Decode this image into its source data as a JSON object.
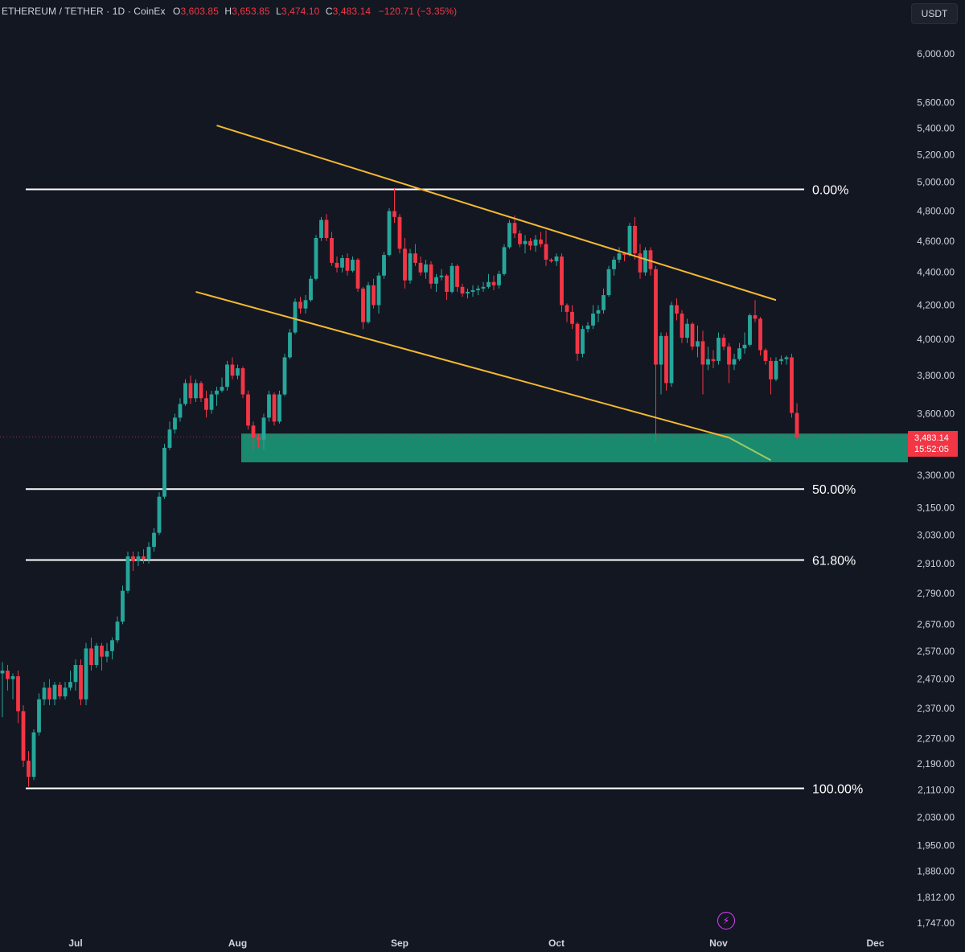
{
  "header": {
    "symbol": "ETHEREUM / TETHER · 1D · CoinEx",
    "open_label": "O",
    "open": "3,603.85",
    "high_label": "H",
    "high": "3,653.85",
    "low_label": "L",
    "low": "3,474.10",
    "close_label": "C",
    "close": "3,483.14",
    "change": "−120.71 (−3.35%)"
  },
  "currency": "USDT",
  "last_price": {
    "price": "3,483.14",
    "countdown": "15:52:05"
  },
  "bolt_icon": "lightning-bolt-icon",
  "colors": {
    "background": "#131722",
    "up": "#26a69a",
    "down": "#f23645",
    "trendline": "#f5b931",
    "zone": "#1a8a6e",
    "fib": "#ffffff",
    "text": "#d1d4dc"
  },
  "chart_data": {
    "type": "candlestick",
    "scale": "log",
    "ylim": [
      1720,
      6300
    ],
    "y_ticks": [
      {
        "value": 6000,
        "label": "6,000.00"
      },
      {
        "value": 5600,
        "label": "5,600.00"
      },
      {
        "value": 5400,
        "label": "5,400.00"
      },
      {
        "value": 5200,
        "label": "5,200.00"
      },
      {
        "value": 5000,
        "label": "5,000.00"
      },
      {
        "value": 4800,
        "label": "4,800.00"
      },
      {
        "value": 4600,
        "label": "4,600.00"
      },
      {
        "value": 4400,
        "label": "4,400.00"
      },
      {
        "value": 4200,
        "label": "4,200.00"
      },
      {
        "value": 4000,
        "label": "4,000.00"
      },
      {
        "value": 3800,
        "label": "3,800.00"
      },
      {
        "value": 3600,
        "label": "3,600.00"
      },
      {
        "value": 3300,
        "label": "3,300.00"
      },
      {
        "value": 3150,
        "label": "3,150.00"
      },
      {
        "value": 3030,
        "label": "3,030.00"
      },
      {
        "value": 2910,
        "label": "2,910.00"
      },
      {
        "value": 2790,
        "label": "2,790.00"
      },
      {
        "value": 2670,
        "label": "2,670.00"
      },
      {
        "value": 2570,
        "label": "2,570.00"
      },
      {
        "value": 2470,
        "label": "2,470.00"
      },
      {
        "value": 2370,
        "label": "2,370.00"
      },
      {
        "value": 2270,
        "label": "2,270.00"
      },
      {
        "value": 2190,
        "label": "2,190.00"
      },
      {
        "value": 2110,
        "label": "2,110.00"
      },
      {
        "value": 2030,
        "label": "2,030.00"
      },
      {
        "value": 1950,
        "label": "1,950.00"
      },
      {
        "value": 1880,
        "label": "1,880.00"
      },
      {
        "value": 1812,
        "label": "1,812.00"
      },
      {
        "value": 1747,
        "label": "1,747.00"
      }
    ],
    "x_ticks": [
      {
        "day": 14,
        "label": "Jul"
      },
      {
        "day": 45,
        "label": "Aug"
      },
      {
        "day": 76,
        "label": "Sep"
      },
      {
        "day": 106,
        "label": "Oct"
      },
      {
        "day": 137,
        "label": "Nov"
      },
      {
        "day": 167,
        "label": "Dec"
      }
    ],
    "candles": [
      [
        2490,
        2530,
        2340,
        2500
      ],
      [
        2500,
        2520,
        2430,
        2470
      ],
      [
        2470,
        2490,
        2400,
        2480
      ],
      [
        2480,
        2500,
        2320,
        2360
      ],
      [
        2360,
        2380,
        2180,
        2200
      ],
      [
        2200,
        2230,
        2120,
        2150
      ],
      [
        2150,
        2300,
        2140,
        2290
      ],
      [
        2290,
        2420,
        2280,
        2400
      ],
      [
        2400,
        2460,
        2380,
        2440
      ],
      [
        2440,
        2470,
        2380,
        2400
      ],
      [
        2400,
        2460,
        2380,
        2450
      ],
      [
        2450,
        2460,
        2400,
        2410
      ],
      [
        2410,
        2460,
        2400,
        2440
      ],
      [
        2440,
        2500,
        2430,
        2460
      ],
      [
        2460,
        2540,
        2430,
        2520
      ],
      [
        2520,
        2540,
        2380,
        2400
      ],
      [
        2400,
        2600,
        2380,
        2580
      ],
      [
        2580,
        2620,
        2500,
        2520
      ],
      [
        2520,
        2600,
        2510,
        2590
      ],
      [
        2590,
        2600,
        2500,
        2550
      ],
      [
        2550,
        2600,
        2530,
        2570
      ],
      [
        2570,
        2620,
        2540,
        2610
      ],
      [
        2610,
        2700,
        2600,
        2680
      ],
      [
        2680,
        2820,
        2670,
        2800
      ],
      [
        2800,
        2960,
        2790,
        2940
      ],
      [
        2940,
        2960,
        2880,
        2920
      ],
      [
        2920,
        2960,
        2900,
        2940
      ],
      [
        2940,
        2970,
        2910,
        2930
      ],
      [
        2930,
        3000,
        2910,
        2980
      ],
      [
        2980,
        3060,
        2960,
        3040
      ],
      [
        3040,
        3220,
        3030,
        3200
      ],
      [
        3200,
        3450,
        3190,
        3430
      ],
      [
        3430,
        3560,
        3420,
        3520
      ],
      [
        3520,
        3600,
        3500,
        3580
      ],
      [
        3580,
        3680,
        3560,
        3650
      ],
      [
        3650,
        3780,
        3640,
        3760
      ],
      [
        3760,
        3800,
        3650,
        3680
      ],
      [
        3680,
        3780,
        3660,
        3760
      ],
      [
        3760,
        3770,
        3660,
        3680
      ],
      [
        3680,
        3720,
        3580,
        3620
      ],
      [
        3620,
        3720,
        3600,
        3700
      ],
      [
        3700,
        3740,
        3640,
        3720
      ],
      [
        3720,
        3790,
        3710,
        3740
      ],
      [
        3740,
        3880,
        3720,
        3860
      ],
      [
        3860,
        3900,
        3780,
        3800
      ],
      [
        3800,
        3860,
        3780,
        3840
      ],
      [
        3840,
        3850,
        3680,
        3700
      ],
      [
        3700,
        3720,
        3520,
        3540
      ],
      [
        3540,
        3560,
        3420,
        3480
      ],
      [
        3480,
        3500,
        3430,
        3470
      ],
      [
        3470,
        3600,
        3420,
        3580
      ],
      [
        3580,
        3720,
        3560,
        3700
      ],
      [
        3700,
        3710,
        3540,
        3560
      ],
      [
        3560,
        3720,
        3550,
        3700
      ],
      [
        3700,
        3920,
        3690,
        3900
      ],
      [
        3900,
        4060,
        3890,
        4040
      ],
      [
        4040,
        4240,
        4030,
        4220
      ],
      [
        4220,
        4250,
        4150,
        4180
      ],
      [
        4180,
        4260,
        4150,
        4230
      ],
      [
        4230,
        4380,
        4220,
        4360
      ],
      [
        4360,
        4640,
        4350,
        4620
      ],
      [
        4620,
        4760,
        4600,
        4740
      ],
      [
        4740,
        4780,
        4600,
        4620
      ],
      [
        4620,
        4660,
        4440,
        4460
      ],
      [
        4460,
        4500,
        4400,
        4430
      ],
      [
        4430,
        4510,
        4400,
        4490
      ],
      [
        4490,
        4520,
        4380,
        4410
      ],
      [
        4410,
        4500,
        4400,
        4480
      ],
      [
        4480,
        4490,
        4280,
        4300
      ],
      [
        4300,
        4310,
        4060,
        4100
      ],
      [
        4100,
        4340,
        4090,
        4320
      ],
      [
        4320,
        4360,
        4180,
        4200
      ],
      [
        4200,
        4400,
        4150,
        4380
      ],
      [
        4380,
        4530,
        4360,
        4510
      ],
      [
        4510,
        4820,
        4500,
        4800
      ],
      [
        4800,
        4960,
        4720,
        4760
      ],
      [
        4760,
        4780,
        4520,
        4550
      ],
      [
        4550,
        4620,
        4300,
        4350
      ],
      [
        4350,
        4550,
        4330,
        4520
      ],
      [
        4520,
        4580,
        4440,
        4460
      ],
      [
        4460,
        4500,
        4380,
        4400
      ],
      [
        4400,
        4480,
        4360,
        4450
      ],
      [
        4450,
        4470,
        4300,
        4330
      ],
      [
        4330,
        4390,
        4280,
        4370
      ],
      [
        4370,
        4420,
        4350,
        4380
      ],
      [
        4380,
        4390,
        4230,
        4280
      ],
      [
        4280,
        4460,
        4270,
        4440
      ],
      [
        4440,
        4450,
        4280,
        4310
      ],
      [
        4310,
        4330,
        4250,
        4270
      ],
      [
        4270,
        4300,
        4240,
        4280
      ],
      [
        4280,
        4320,
        4250,
        4290
      ],
      [
        4290,
        4320,
        4260,
        4300
      ],
      [
        4300,
        4340,
        4280,
        4310
      ],
      [
        4310,
        4390,
        4300,
        4340
      ],
      [
        4340,
        4380,
        4290,
        4320
      ],
      [
        4320,
        4410,
        4300,
        4390
      ],
      [
        4390,
        4580,
        4380,
        4560
      ],
      [
        4560,
        4740,
        4550,
        4720
      ],
      [
        4720,
        4770,
        4620,
        4650
      ],
      [
        4650,
        4670,
        4560,
        4580
      ],
      [
        4580,
        4640,
        4520,
        4600
      ],
      [
        4600,
        4620,
        4540,
        4570
      ],
      [
        4570,
        4640,
        4530,
        4610
      ],
      [
        4610,
        4660,
        4560,
        4580
      ],
      [
        4580,
        4670,
        4440,
        4480
      ],
      [
        4480,
        4490,
        4460,
        4470
      ],
      [
        4470,
        4520,
        4440,
        4500
      ],
      [
        4500,
        4520,
        4160,
        4200
      ],
      [
        4200,
        4210,
        4100,
        4160
      ],
      [
        4160,
        4200,
        4060,
        4090
      ],
      [
        4090,
        4100,
        3880,
        3920
      ],
      [
        3920,
        4080,
        3900,
        4060
      ],
      [
        4060,
        4100,
        4040,
        4080
      ],
      [
        4080,
        4200,
        4060,
        4150
      ],
      [
        4150,
        4200,
        4100,
        4170
      ],
      [
        4170,
        4300,
        4150,
        4260
      ],
      [
        4260,
        4440,
        4250,
        4420
      ],
      [
        4420,
        4500,
        4380,
        4480
      ],
      [
        4480,
        4560,
        4460,
        4520
      ],
      [
        4520,
        4530,
        4470,
        4510
      ],
      [
        4510,
        4720,
        4500,
        4700
      ],
      [
        4700,
        4760,
        4480,
        4520
      ],
      [
        4520,
        4580,
        4360,
        4400
      ],
      [
        4400,
        4560,
        4380,
        4540
      ],
      [
        4540,
        4560,
        4380,
        4420
      ],
      [
        4420,
        4440,
        3460,
        3860
      ],
      [
        3860,
        4040,
        3700,
        4020
      ],
      [
        4020,
        4040,
        3720,
        3760
      ],
      [
        3760,
        4220,
        3740,
        4200
      ],
      [
        4200,
        4240,
        4110,
        4150
      ],
      [
        4150,
        4170,
        3980,
        4010
      ],
      [
        4010,
        4120,
        3980,
        4090
      ],
      [
        4090,
        4100,
        3940,
        3960
      ],
      [
        3960,
        4080,
        3900,
        3990
      ],
      [
        3990,
        4050,
        3700,
        3860
      ],
      [
        3860,
        3960,
        3830,
        3890
      ],
      [
        3890,
        3940,
        3840,
        3880
      ],
      [
        3880,
        4040,
        3860,
        4010
      ],
      [
        4010,
        4030,
        3940,
        3960
      ],
      [
        3960,
        3980,
        3760,
        3860
      ],
      [
        3860,
        3920,
        3830,
        3890
      ],
      [
        3890,
        3980,
        3880,
        3950
      ],
      [
        3950,
        4040,
        3920,
        3970
      ],
      [
        3970,
        4150,
        3960,
        4140
      ],
      [
        4140,
        4230,
        4100,
        4120
      ],
      [
        4120,
        4130,
        3910,
        3940
      ],
      [
        3940,
        3950,
        3860,
        3880
      ],
      [
        3880,
        3900,
        3700,
        3780
      ],
      [
        3780,
        3900,
        3770,
        3880
      ],
      [
        3880,
        3910,
        3860,
        3890
      ],
      [
        3890,
        3910,
        3860,
        3900
      ],
      [
        3900,
        3920,
        3580,
        3603.85
      ],
      [
        3603.85,
        3653.85,
        3474.1,
        3483.14
      ]
    ],
    "fib_levels": [
      {
        "label": "0.00%",
        "value": 4950
      },
      {
        "label": "50.00%",
        "value": 3235
      },
      {
        "label": "61.80%",
        "value": 2925
      },
      {
        "label": "100.00%",
        "value": 2115
      }
    ],
    "support_zone": {
      "low": 3360,
      "high": 3500
    },
    "channel": {
      "upper": [
        {
          "day": 41,
          "value": 5420
        },
        {
          "day": 148,
          "value": 4230
        }
      ],
      "lower": [
        {
          "day": 37,
          "value": 4280
        },
        {
          "day": 139,
          "value": 3480
        }
      ],
      "lower_extension": [
        {
          "day": 139,
          "value": 3480
        },
        {
          "day": 147,
          "value": 3370
        }
      ]
    }
  }
}
